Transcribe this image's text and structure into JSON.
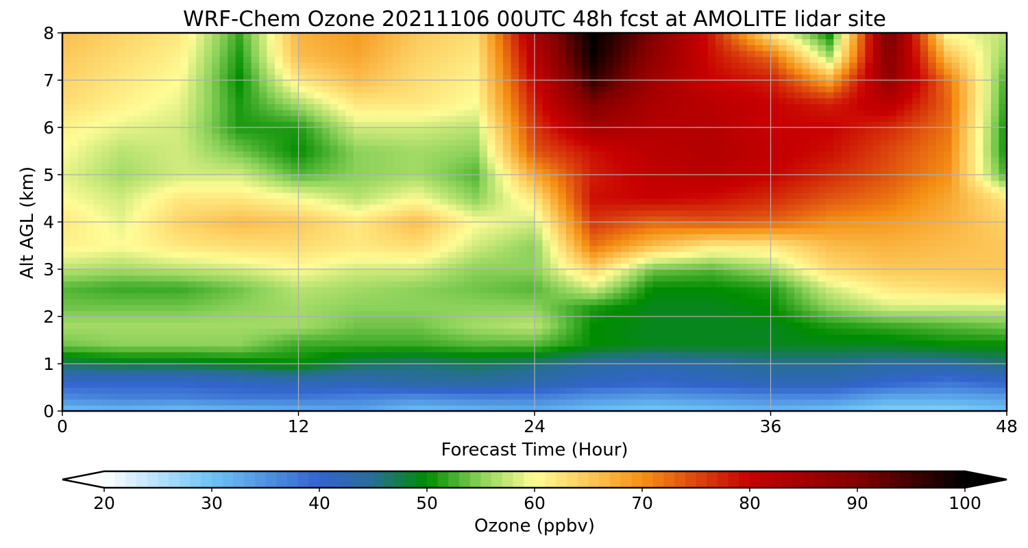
{
  "chart_data": {
    "type": "heatmap",
    "title": "WRF-Chem Ozone  20211106 00UTC 48h fcst at AMOLITE lidar site",
    "xlabel": "Forecast Time (Hour)",
    "ylabel": "Alt AGL (km)",
    "xlim": [
      0,
      48
    ],
    "ylim": [
      0,
      8
    ],
    "xticks": [
      "0",
      "12",
      "24",
      "36",
      "48"
    ],
    "yticks": [
      "0",
      "1",
      "2",
      "3",
      "4",
      "5",
      "6",
      "7",
      "8"
    ],
    "grid": true,
    "x": [
      0,
      3,
      6,
      9,
      12,
      15,
      18,
      21,
      24,
      27,
      30,
      33,
      36,
      39,
      42,
      45,
      48
    ],
    "y": [
      0,
      0.3,
      0.6,
      1.0,
      1.4,
      1.8,
      2.2,
      2.6,
      3.0,
      3.5,
      4.0,
      4.5,
      5.0,
      5.5,
      6.0,
      6.5,
      7.0,
      7.5,
      8.0
    ],
    "values": [
      [
        30,
        31,
        30,
        31,
        32,
        33,
        30,
        31,
        32,
        30,
        29,
        30,
        31,
        30,
        28,
        28,
        30
      ],
      [
        36,
        37,
        37,
        38,
        38,
        37,
        36,
        37,
        37,
        35,
        34,
        35,
        36,
        36,
        33,
        33,
        34
      ],
      [
        40,
        40,
        40,
        41,
        42,
        42,
        44,
        44,
        43,
        41,
        40,
        41,
        42,
        42,
        40,
        38,
        40
      ],
      [
        47,
        48,
        48,
        49,
        50,
        47,
        46,
        47,
        46,
        44,
        43,
        44,
        45,
        45,
        44,
        44,
        46
      ],
      [
        54,
        55,
        55,
        55,
        52,
        52,
        52,
        53,
        53,
        50,
        49,
        49,
        49,
        49,
        49,
        50,
        50
      ],
      [
        56,
        56,
        56,
        56,
        56,
        54,
        54,
        56,
        57,
        50,
        49,
        49,
        49,
        51,
        52,
        53,
        54
      ],
      [
        54,
        54,
        54,
        55,
        56,
        55,
        55,
        55,
        55,
        51,
        49,
        49,
        50,
        55,
        58,
        58,
        58
      ],
      [
        53,
        52,
        52,
        54,
        57,
        56,
        55,
        54,
        53,
        58,
        50,
        50,
        51,
        58,
        62,
        63,
        64
      ],
      [
        57,
        56,
        57,
        58,
        60,
        58,
        58,
        55,
        55,
        64,
        54,
        53,
        56,
        63,
        65,
        65,
        65
      ],
      [
        61,
        60,
        62,
        63,
        63,
        62,
        63,
        58,
        55,
        72,
        66,
        62,
        62,
        66,
        67,
        66,
        65
      ],
      [
        62,
        59,
        64,
        66,
        65,
        62,
        66,
        60,
        58,
        76,
        73,
        74,
        73,
        70,
        69,
        67,
        64
      ],
      [
        60,
        58,
        62,
        62,
        60,
        57,
        60,
        55,
        62,
        79,
        80,
        79,
        77,
        74,
        72,
        68,
        62
      ],
      [
        59,
        56,
        58,
        58,
        53,
        55,
        56,
        53,
        68,
        78,
        81,
        82,
        80,
        77,
        74,
        70,
        52
      ],
      [
        60,
        57,
        58,
        54,
        50,
        55,
        56,
        55,
        74,
        79,
        82,
        83,
        81,
        79,
        75,
        71,
        50
      ],
      [
        61,
        59,
        58,
        51,
        51,
        58,
        58,
        57,
        76,
        85,
        83,
        83,
        80,
        80,
        77,
        72,
        50
      ],
      [
        63,
        61,
        59,
        51,
        56,
        62,
        62,
        60,
        78,
        90,
        84,
        82,
        80,
        78,
        82,
        73,
        51
      ],
      [
        64,
        62,
        60,
        50,
        62,
        66,
        63,
        61,
        80,
        96,
        86,
        80,
        78,
        68,
        88,
        72,
        52
      ],
      [
        65,
        63,
        61,
        51,
        66,
        68,
        64,
        62,
        82,
        99,
        88,
        79,
        73,
        56,
        90,
        66,
        55
      ],
      [
        66,
        64,
        62,
        52,
        67,
        69,
        65,
        63,
        84,
        100,
        90,
        78,
        62,
        50,
        92,
        60,
        57
      ]
    ],
    "colorbar": {
      "label": "Ozone  (ppbv)",
      "ticks": [
        "20",
        "30",
        "40",
        "50",
        "60",
        "70",
        "80",
        "90",
        "100"
      ],
      "min": 20,
      "max": 100,
      "extend": "both"
    }
  }
}
